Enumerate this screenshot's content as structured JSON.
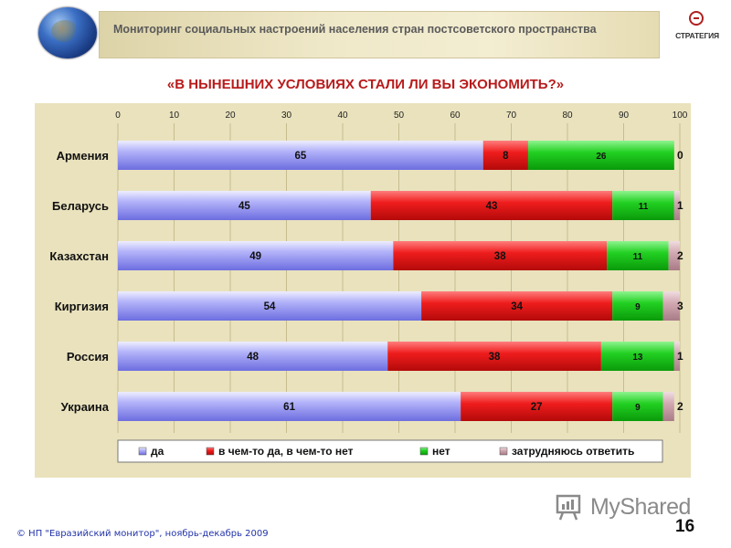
{
  "header": {
    "title": "Мониторинг социальных настроений населения стран постсоветского пространства",
    "logo_text": "СТРАТЕГИЯ"
  },
  "footer": {
    "copyright": "© НП \"Евразийский монитор\", ноябрь-декабрь 2009",
    "page_number": "16",
    "watermark": "MyShared"
  },
  "colors": {
    "yes": "#8c8cf2",
    "partly": "#e3120f",
    "no": "#14c214",
    "hard": "#c89aa4",
    "panel": "#e9e2bd",
    "title": "#b81b1b"
  },
  "chart_data": {
    "type": "bar",
    "orientation": "horizontal",
    "stacked": true,
    "title": "«В НЫНЕШНИХ УСЛОВИЯХ СТАЛИ ЛИ ВЫ ЭКОНОМИТЬ?»",
    "xlim": [
      0,
      100
    ],
    "xticks": [
      0,
      10,
      20,
      30,
      40,
      50,
      60,
      70,
      80,
      90,
      100
    ],
    "grid": true,
    "legend_position": "bottom",
    "categories": [
      "Армения",
      "Беларусь",
      "Казахстан",
      "Киргизия",
      "Россия",
      "Украина"
    ],
    "series": [
      {
        "name": "да",
        "color": "#8c8cf2",
        "values": [
          65,
          45,
          49,
          54,
          48,
          61
        ]
      },
      {
        "name": "в чем-то да, в чем-то нет",
        "color": "#e3120f",
        "values": [
          8,
          43,
          38,
          34,
          38,
          27
        ]
      },
      {
        "name": "нет",
        "color": "#14c214",
        "values": [
          26,
          11,
          11,
          9,
          13,
          9
        ]
      },
      {
        "name": "затрудняюсь ответить",
        "color": "#c89aa4",
        "values": [
          0,
          1,
          2,
          3,
          1,
          2
        ]
      }
    ]
  }
}
